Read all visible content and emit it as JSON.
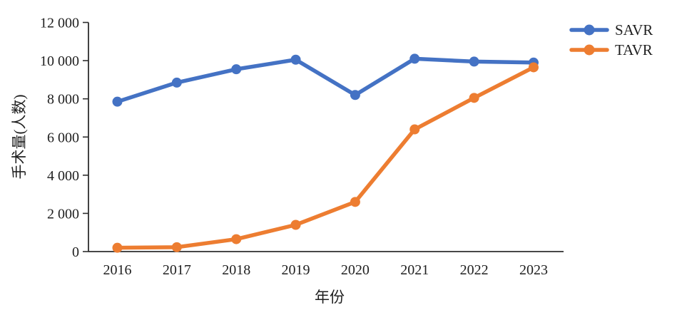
{
  "figure": {
    "y_axis_title": "手术量(人数)",
    "x_axis_title": "年份"
  },
  "colors": {
    "savr": "#4472C4",
    "tavr": "#ED7D31",
    "axis": "#2e2e2e",
    "text": "#1f1f1f"
  },
  "chart_data": {
    "type": "line",
    "title": "",
    "xlabel": "年份",
    "ylabel": "手术量(人数)",
    "categories": [
      "2016",
      "2017",
      "2018",
      "2019",
      "2020",
      "2021",
      "2022",
      "2023"
    ],
    "series": [
      {
        "name": "SAVR",
        "color": "#4472C4",
        "values": [
          7850,
          8850,
          9550,
          10050,
          8200,
          10100,
          9950,
          9900
        ]
      },
      {
        "name": "TAVR",
        "color": "#ED7D31",
        "values": [
          200,
          230,
          650,
          1400,
          2600,
          6400,
          8050,
          9650
        ]
      }
    ],
    "ylim": [
      0,
      12000
    ],
    "y_ticks": [
      0,
      2000,
      4000,
      6000,
      8000,
      10000,
      12000
    ],
    "y_tick_labels": [
      "0",
      "2 000",
      "4 000",
      "6 000",
      "8 000",
      "10 000",
      "12 000"
    ],
    "grid": false,
    "legend_position": "top-right",
    "marker": "circle"
  }
}
